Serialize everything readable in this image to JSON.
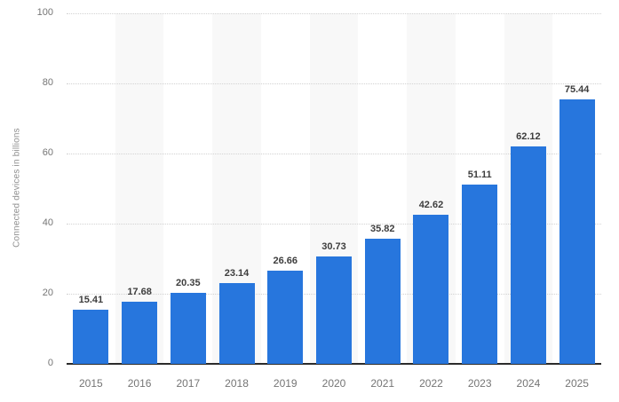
{
  "chart_data": {
    "type": "bar",
    "categories": [
      "2015",
      "2016",
      "2017",
      "2018",
      "2019",
      "2020",
      "2021",
      "2022",
      "2023",
      "2024",
      "2025"
    ],
    "values": [
      15.41,
      17.68,
      20.35,
      23.14,
      26.66,
      30.73,
      35.82,
      42.62,
      51.11,
      62.12,
      75.44
    ],
    "value_labels": [
      "15.41",
      "17.68",
      "20.35",
      "23.14",
      "26.66",
      "30.73",
      "35.82",
      "42.62",
      "51.11",
      "62.12",
      "75.44"
    ],
    "title": "",
    "xlabel": "",
    "ylabel": "Connected devices in billions",
    "ylim": [
      0,
      100
    ],
    "yticks": [
      0,
      20,
      40,
      60,
      80,
      100
    ],
    "grid": "horizontal-dotted",
    "legend": "none",
    "plot_bands": "alternating columns starting at second category",
    "colors": {
      "bar": "#2776dd",
      "value_label": "#3d3d3d",
      "axis_text": "#757575",
      "axis_title": "#8f8f8f",
      "gridline": "#d2d2d2",
      "baseline": "#2b2b2b",
      "band": "#f8f8f8",
      "background": "#ffffff"
    }
  }
}
